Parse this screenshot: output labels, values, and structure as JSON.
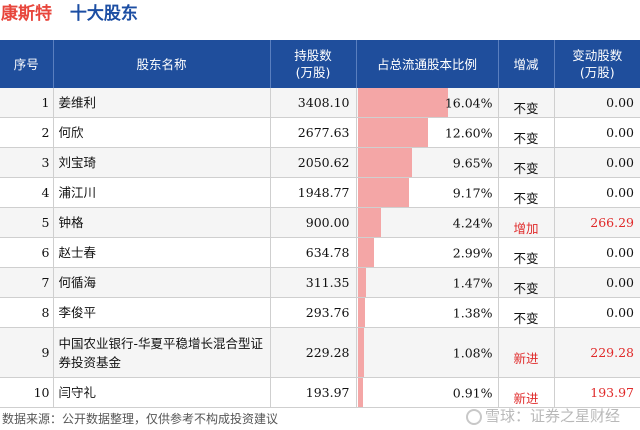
{
  "header": {
    "company": "康斯特",
    "subtitle": "十大股东"
  },
  "columns": [
    "序号",
    "股东名称",
    "持股数\n(万股)",
    "占总流通股本比例",
    "增减",
    "变动股数\n(万股)"
  ],
  "rows": [
    {
      "idx": "1",
      "name": "姜维利",
      "shares": "3408.10",
      "ratio": 16.04,
      "ratio_text": "16.04%",
      "change": "不变",
      "delta": "0.00",
      "red": false
    },
    {
      "idx": "2",
      "name": "何欣",
      "shares": "2677.63",
      "ratio": 12.6,
      "ratio_text": "12.60%",
      "change": "不变",
      "delta": "0.00",
      "red": false
    },
    {
      "idx": "3",
      "name": "刘宝琦",
      "shares": "2050.62",
      "ratio": 9.65,
      "ratio_text": "9.65%",
      "change": "不变",
      "delta": "0.00",
      "red": false
    },
    {
      "idx": "4",
      "name": "浦江川",
      "shares": "1948.77",
      "ratio": 9.17,
      "ratio_text": "9.17%",
      "change": "不变",
      "delta": "0.00",
      "red": false
    },
    {
      "idx": "5",
      "name": "钟格",
      "shares": "900.00",
      "ratio": 4.24,
      "ratio_text": "4.24%",
      "change": "增加",
      "delta": "266.29",
      "red": true
    },
    {
      "idx": "6",
      "name": "赵士春",
      "shares": "634.78",
      "ratio": 2.99,
      "ratio_text": "2.99%",
      "change": "不变",
      "delta": "0.00",
      "red": false
    },
    {
      "idx": "7",
      "name": "何循海",
      "shares": "311.35",
      "ratio": 1.47,
      "ratio_text": "1.47%",
      "change": "不变",
      "delta": "0.00",
      "red": false
    },
    {
      "idx": "8",
      "name": "李俊平",
      "shares": "293.76",
      "ratio": 1.38,
      "ratio_text": "1.38%",
      "change": "不变",
      "delta": "0.00",
      "red": false
    },
    {
      "idx": "9",
      "name": "中国农业银行-华夏平稳增长混合型证券投资基金",
      "shares": "229.28",
      "ratio": 1.08,
      "ratio_text": "1.08%",
      "change": "新进",
      "delta": "229.28",
      "red": true,
      "tall": true
    },
    {
      "idx": "10",
      "name": "闫守礼",
      "shares": "193.97",
      "ratio": 0.91,
      "ratio_text": "0.91%",
      "change": "新进",
      "delta": "193.97",
      "red": true
    }
  ],
  "ratio_scale_max": 16.04,
  "footer": {
    "source": "数据来源：公开数据整理，仅供参考不构成投资建议"
  },
  "brand": {
    "text": "雪球：证券之星财经"
  },
  "watermark": "证券之星",
  "colors": {
    "header_bg": "#1f4e9c",
    "bar": "#f4a6a6",
    "accent_red": "#e02b2b"
  }
}
